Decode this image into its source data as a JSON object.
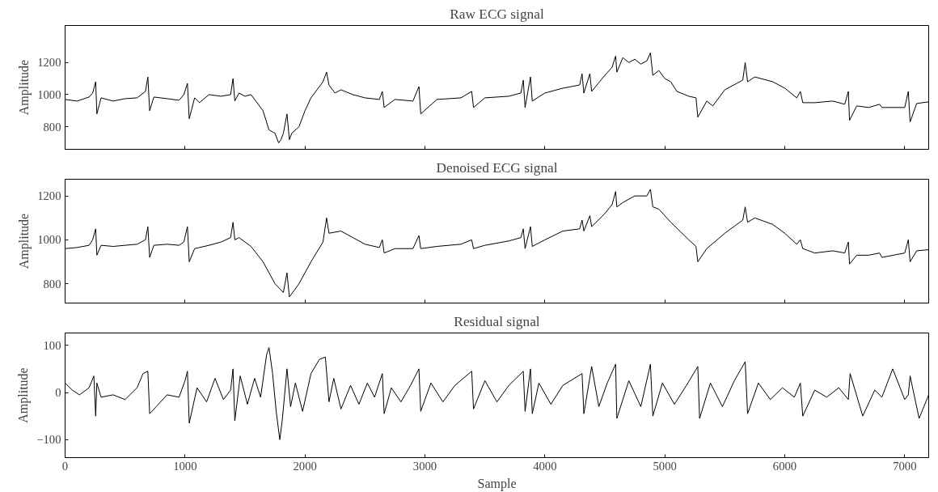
{
  "chart_data": [
    {
      "type": "line",
      "title": "Raw ECG signal",
      "ylabel": "Amplitude",
      "xlim": [
        0,
        7200
      ],
      "ylim": [
        660,
        1430
      ],
      "xticks": [
        0,
        1000,
        2000,
        3000,
        4000,
        5000,
        6000,
        7000
      ],
      "yticks": [
        800,
        1000,
        1200
      ],
      "tick_labels": "y",
      "color": "#000000",
      "x": [
        0,
        100,
        200,
        230,
        255,
        265,
        300,
        400,
        500,
        600,
        670,
        690,
        705,
        740,
        850,
        950,
        990,
        1020,
        1035,
        1080,
        1120,
        1200,
        1300,
        1380,
        1400,
        1415,
        1450,
        1500,
        1550,
        1600,
        1650,
        1700,
        1750,
        1780,
        1800,
        1820,
        1850,
        1870,
        1890,
        1950,
        2000,
        2050,
        2100,
        2150,
        2180,
        2200,
        2250,
        2300,
        2400,
        2500,
        2620,
        2645,
        2660,
        2750,
        2900,
        2950,
        2965,
        3100,
        3300,
        3390,
        3405,
        3500,
        3700,
        3800,
        3820,
        3835,
        3880,
        3895,
        4000,
        4150,
        4290,
        4310,
        4325,
        4375,
        4390,
        4500,
        4560,
        4590,
        4600,
        4650,
        4700,
        4750,
        4800,
        4850,
        4880,
        4900,
        4950,
        5000,
        5050,
        5100,
        5200,
        5260,
        5275,
        5350,
        5400,
        5500,
        5650,
        5670,
        5690,
        5750,
        5900,
        6000,
        6100,
        6130,
        6150,
        6250,
        6400,
        6500,
        6530,
        6540,
        6600,
        6700,
        6790,
        6810,
        7000,
        7030,
        7045,
        7100,
        7200
      ],
      "values": [
        970,
        960,
        985,
        1010,
        1080,
        880,
        980,
        960,
        975,
        980,
        1020,
        1110,
        900,
        985,
        975,
        965,
        1000,
        1070,
        850,
        980,
        950,
        1000,
        990,
        1000,
        1100,
        960,
        1010,
        990,
        1000,
        950,
        900,
        780,
        760,
        700,
        720,
        760,
        880,
        720,
        760,
        800,
        900,
        980,
        1030,
        1080,
        1140,
        1060,
        1010,
        1030,
        1000,
        980,
        970,
        1020,
        920,
        970,
        960,
        1050,
        880,
        970,
        980,
        1020,
        920,
        980,
        990,
        1010,
        1090,
        920,
        1110,
        960,
        1010,
        1040,
        1060,
        1130,
        1010,
        1130,
        1020,
        1120,
        1170,
        1240,
        1140,
        1230,
        1200,
        1220,
        1190,
        1210,
        1260,
        1120,
        1150,
        1100,
        1080,
        1020,
        990,
        980,
        860,
        960,
        930,
        1030,
        1090,
        1200,
        1080,
        1110,
        1080,
        1040,
        980,
        1020,
        950,
        950,
        960,
        940,
        1020,
        840,
        930,
        920,
        940,
        920,
        920,
        1020,
        830,
        945,
        955
      ]
    },
    {
      "type": "line",
      "title": "Denoised ECG signal",
      "ylabel": "Amplitude",
      "xlim": [
        0,
        7200
      ],
      "ylim": [
        712,
        1276
      ],
      "xticks": [
        0,
        1000,
        2000,
        3000,
        4000,
        5000,
        6000,
        7000
      ],
      "yticks": [
        800,
        1000,
        1200
      ],
      "tick_labels": "y",
      "color": "#000000",
      "x": [
        0,
        100,
        200,
        230,
        255,
        265,
        300,
        400,
        500,
        600,
        670,
        690,
        705,
        740,
        850,
        950,
        990,
        1020,
        1035,
        1080,
        1200,
        1300,
        1380,
        1400,
        1415,
        1450,
        1550,
        1650,
        1750,
        1820,
        1850,
        1870,
        1950,
        2050,
        2150,
        2180,
        2200,
        2300,
        2400,
        2500,
        2620,
        2645,
        2660,
        2750,
        2900,
        2950,
        2965,
        3100,
        3300,
        3390,
        3405,
        3500,
        3700,
        3800,
        3820,
        3835,
        3880,
        3895,
        4000,
        4150,
        4290,
        4310,
        4325,
        4375,
        4390,
        4500,
        4560,
        4590,
        4600,
        4650,
        4750,
        4850,
        4880,
        4900,
        4950,
        5050,
        5200,
        5260,
        5275,
        5350,
        5500,
        5650,
        5670,
        5690,
        5750,
        5900,
        6000,
        6100,
        6130,
        6150,
        6250,
        6400,
        6500,
        6530,
        6540,
        6600,
        6700,
        6790,
        6810,
        7000,
        7030,
        7045,
        7100,
        7200
      ],
      "values": [
        960,
        965,
        975,
        1000,
        1050,
        930,
        975,
        970,
        975,
        980,
        1000,
        1060,
        920,
        975,
        980,
        975,
        990,
        1060,
        900,
        960,
        975,
        990,
        1010,
        1080,
        1000,
        1010,
        970,
        900,
        800,
        760,
        850,
        740,
        800,
        900,
        990,
        1100,
        1030,
        1040,
        1010,
        980,
        965,
        1000,
        940,
        960,
        960,
        1020,
        960,
        970,
        980,
        1000,
        960,
        975,
        995,
        1010,
        1050,
        960,
        1060,
        970,
        1000,
        1040,
        1050,
        1090,
        1040,
        1110,
        1060,
        1120,
        1160,
        1220,
        1150,
        1170,
        1200,
        1200,
        1230,
        1150,
        1140,
        1080,
        1000,
        970,
        900,
        960,
        1030,
        1090,
        1150,
        1080,
        1100,
        1070,
        1030,
        980,
        1000,
        960,
        940,
        950,
        940,
        990,
        890,
        930,
        930,
        940,
        920,
        940,
        1000,
        900,
        950,
        955
      ]
    },
    {
      "type": "line",
      "title": "Residual signal",
      "ylabel": "Amplitude",
      "xlabel": "Sample",
      "xlim": [
        0,
        7200
      ],
      "ylim": [
        -138,
        126
      ],
      "xticks": [
        0,
        1000,
        2000,
        3000,
        4000,
        5000,
        6000,
        7000
      ],
      "yticks": [
        -100,
        0,
        100
      ],
      "color": "#000000",
      "x": [
        0,
        60,
        120,
        200,
        240,
        255,
        265,
        300,
        400,
        500,
        600,
        650,
        690,
        705,
        760,
        850,
        950,
        1000,
        1020,
        1035,
        1100,
        1180,
        1250,
        1320,
        1380,
        1400,
        1415,
        1460,
        1520,
        1580,
        1630,
        1680,
        1700,
        1730,
        1760,
        1790,
        1810,
        1850,
        1880,
        1920,
        1980,
        2050,
        2120,
        2170,
        2200,
        2240,
        2300,
        2380,
        2450,
        2520,
        2580,
        2645,
        2660,
        2720,
        2800,
        2880,
        2950,
        2965,
        3050,
        3150,
        3250,
        3390,
        3405,
        3500,
        3600,
        3700,
        3820,
        3835,
        3880,
        3895,
        3950,
        4050,
        4150,
        4310,
        4325,
        4390,
        4450,
        4520,
        4590,
        4600,
        4700,
        4800,
        4880,
        4900,
        4980,
        5080,
        5180,
        5275,
        5290,
        5380,
        5480,
        5580,
        5670,
        5690,
        5780,
        5880,
        5980,
        6080,
        6130,
        6150,
        6250,
        6350,
        6450,
        6530,
        6545,
        6650,
        6750,
        6810,
        6900,
        7000,
        7030,
        7045,
        7120,
        7200
      ],
      "values": [
        20,
        5,
        -5,
        10,
        35,
        -50,
        20,
        -10,
        -5,
        -15,
        10,
        40,
        45,
        -45,
        -30,
        -5,
        -10,
        25,
        45,
        -65,
        10,
        -20,
        30,
        -15,
        5,
        50,
        -60,
        35,
        -25,
        30,
        -10,
        80,
        95,
        40,
        -40,
        -100,
        -60,
        50,
        -30,
        20,
        -40,
        40,
        70,
        75,
        -20,
        30,
        -35,
        15,
        -25,
        20,
        -10,
        40,
        -45,
        10,
        -20,
        15,
        50,
        -40,
        20,
        -20,
        15,
        45,
        -35,
        25,
        -20,
        15,
        45,
        -40,
        50,
        -45,
        20,
        -25,
        15,
        40,
        -45,
        55,
        -30,
        20,
        60,
        -55,
        25,
        -30,
        60,
        -50,
        20,
        -25,
        15,
        55,
        -55,
        20,
        -30,
        25,
        65,
        -45,
        20,
        -15,
        10,
        -10,
        20,
        -50,
        5,
        -10,
        10,
        -15,
        40,
        -50,
        5,
        -10,
        50,
        -15,
        -5,
        35,
        -55,
        -5
      ]
    }
  ]
}
